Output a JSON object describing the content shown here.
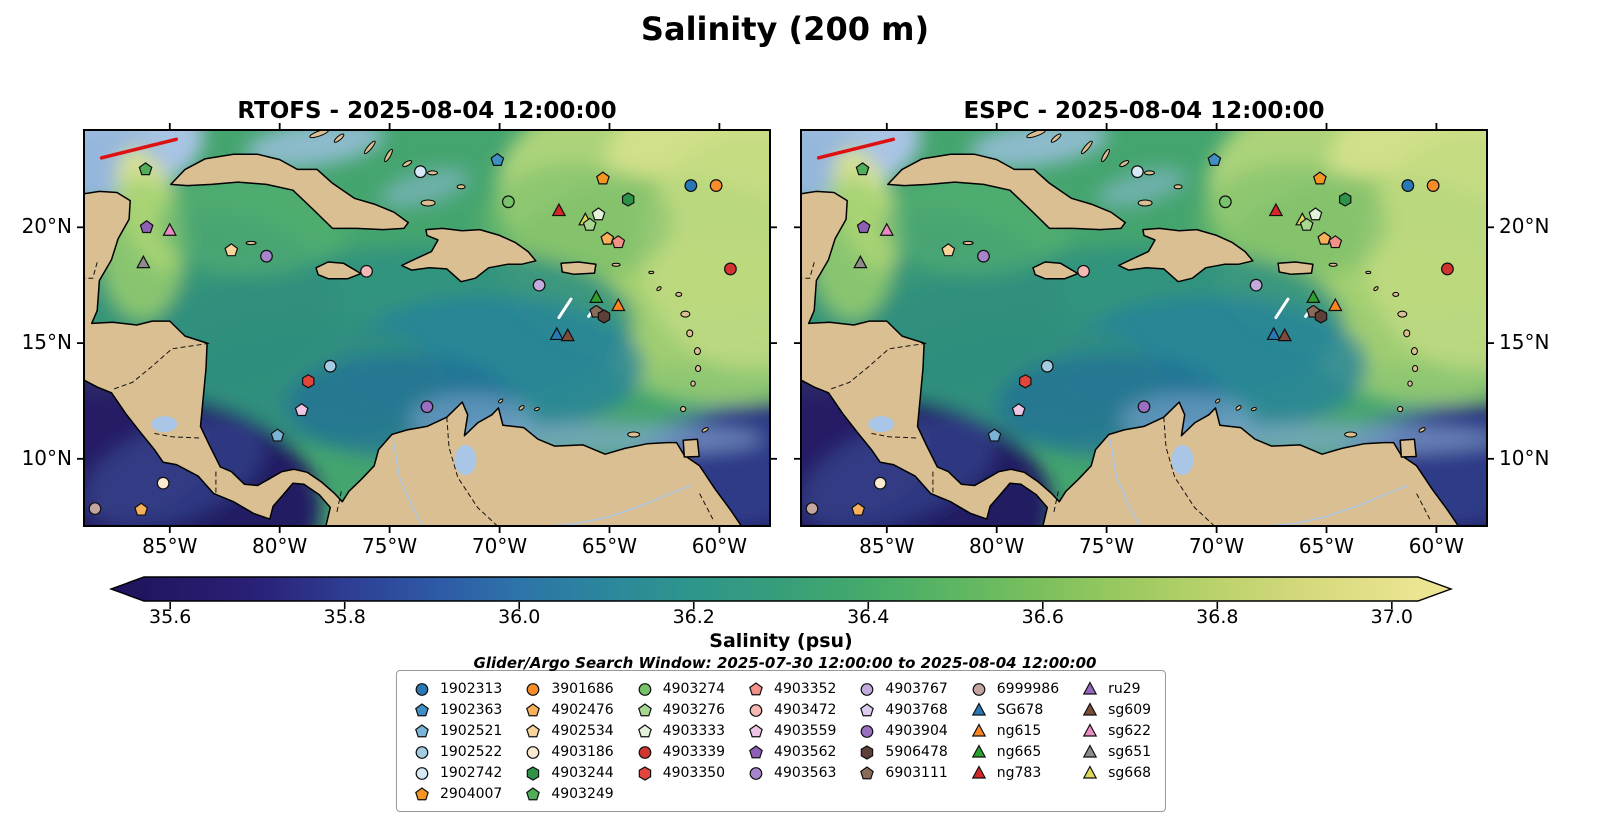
{
  "figure_title": "Salinity (200 m)",
  "panels": [
    {
      "model": "RTOFS",
      "title": "RTOFS - 2025-08-04 12:00:00"
    },
    {
      "model": "ESPC",
      "title": "ESPC - 2025-08-04 12:00:00"
    }
  ],
  "axes": {
    "x_tick_labels": [
      "85°W",
      "80°W",
      "75°W",
      "70°W",
      "65°W",
      "60°W"
    ],
    "y_tick_labels": [
      "20°N",
      "15°N",
      "10°N"
    ]
  },
  "colorbar": {
    "label": "Salinity (psu)",
    "tick_labels": [
      "35.6",
      "35.8",
      "36.0",
      "36.2",
      "36.4",
      "36.6",
      "36.8",
      "37.0"
    ]
  },
  "annotation": "Glider/Argo Search Window: 2025-07-30 12:00:00 to 2025-08-04 12:00:00",
  "palette": {
    "land": "#d9bf92",
    "coastline": "#000000",
    "ocean_base": "#45a56f",
    "shelf_blue": "#a9c4e4",
    "river_blue": "#a9c6e6",
    "fresh_dark": "#221a63",
    "track_red": "#dd1111",
    "track_white": "#ffffff",
    "marker_edge": "#101010"
  },
  "legend": {
    "columns": [
      [
        {
          "label": "1902313",
          "marker": "circle",
          "color": "#2878b5"
        },
        {
          "label": "1902363",
          "marker": "pentagon",
          "color": "#3f8fc5"
        },
        {
          "label": "1902521",
          "marker": "pentagon",
          "color": "#7ab4d8"
        },
        {
          "label": "1902522",
          "marker": "circle",
          "color": "#a3cce3"
        },
        {
          "label": "1902742",
          "marker": "circle",
          "color": "#d6e9f5"
        },
        {
          "label": "2904007",
          "marker": "pentagon",
          "color": "#f59622"
        }
      ],
      [
        {
          "label": "3901686",
          "marker": "circle",
          "color": "#f78c28"
        },
        {
          "label": "4902476",
          "marker": "pentagon",
          "color": "#f9b05a"
        },
        {
          "label": "4902534",
          "marker": "pentagon",
          "color": "#f8d49a"
        },
        {
          "label": "4903186",
          "marker": "circle",
          "color": "#faebd0"
        },
        {
          "label": "4903244",
          "marker": "hexagon",
          "color": "#2e9249"
        },
        {
          "label": "4903249",
          "marker": "pentagon",
          "color": "#4fae57"
        }
      ],
      [
        {
          "label": "4903274",
          "marker": "circle",
          "color": "#77c26b"
        },
        {
          "label": "4903276",
          "marker": "pentagon",
          "color": "#a8d792"
        },
        {
          "label": "4903333",
          "marker": "pentagon",
          "color": "#e3f3da"
        },
        {
          "label": "4903339",
          "marker": "circle",
          "color": "#d23430"
        },
        {
          "label": "4903350",
          "marker": "hexagon",
          "color": "#e1453c"
        }
      ],
      [
        {
          "label": "4903352",
          "marker": "pentagon",
          "color": "#f2918a"
        },
        {
          "label": "4903472",
          "marker": "circle",
          "color": "#f6b8b4"
        },
        {
          "label": "4903559",
          "marker": "pentagon",
          "color": "#ecc6e4"
        },
        {
          "label": "4903562",
          "marker": "pentagon",
          "color": "#8e5fb5"
        },
        {
          "label": "4903563",
          "marker": "circle",
          "color": "#a884cc"
        }
      ],
      [
        {
          "label": "4903767",
          "marker": "circle",
          "color": "#c4abde"
        },
        {
          "label": "4903768",
          "marker": "pentagon",
          "color": "#dccdee"
        },
        {
          "label": "4903904",
          "marker": "circle",
          "color": "#9a6ec2"
        },
        {
          "label": "5906478",
          "marker": "hexagon",
          "color": "#5d4037"
        },
        {
          "label": "6903111",
          "marker": "pentagon",
          "color": "#8a6a58"
        }
      ],
      [
        {
          "label": "6999986",
          "marker": "circle",
          "color": "#c3a6a0"
        },
        {
          "label": "SG678",
          "marker": "triangle",
          "color": "#2878b5"
        },
        {
          "label": "ng615",
          "marker": "triangle",
          "color": "#fd8420"
        },
        {
          "label": "ng665",
          "marker": "triangle",
          "color": "#2ca02c"
        },
        {
          "label": "ng783",
          "marker": "triangle",
          "color": "#d62728"
        }
      ],
      [
        {
          "label": "ru29",
          "marker": "triangle",
          "color": "#9467bd"
        },
        {
          "label": "sg609",
          "marker": "triangle",
          "color": "#7d4b3a"
        },
        {
          "label": "sg622",
          "marker": "triangle",
          "color": "#e88bc4"
        },
        {
          "label": "sg651",
          "marker": "triangle",
          "color": "#8c8c8c"
        },
        {
          "label": "sg668",
          "marker": "triangle",
          "color": "#ddd85a"
        }
      ]
    ]
  },
  "chart_data": {
    "type": "heatmap",
    "title": "Salinity (200 m)",
    "variable": "Salinity",
    "units": "psu",
    "depth": "200 m",
    "panels": [
      {
        "model": "RTOFS",
        "valid_time": "2025-08-04 12:00:00"
      },
      {
        "model": "ESPC",
        "valid_time": "2025-08-04 12:00:00"
      }
    ],
    "search_window": {
      "start": "2025-07-30 12:00:00",
      "end": "2025-08-04 12:00:00"
    },
    "x_axis": {
      "ticks_deg_west": [
        85,
        80,
        75,
        70,
        65,
        60
      ],
      "range_deg_west": [
        88.9,
        57.7
      ]
    },
    "y_axis": {
      "ticks_deg_north": [
        20,
        15,
        10
      ],
      "range_deg_north": [
        24.2,
        7.1
      ]
    },
    "colorbar": {
      "label": "Salinity (psu)",
      "ticks": [
        35.6,
        35.8,
        36.0,
        36.2,
        36.4,
        36.6,
        36.8,
        37.0
      ],
      "range": [
        35.57,
        37.03
      ],
      "extended_both_ends": true,
      "gradient": [
        {
          "v": 35.57,
          "c": "#201660"
        },
        {
          "v": 35.7,
          "c": "#2a2178"
        },
        {
          "v": 35.8,
          "c": "#2e3d92"
        },
        {
          "v": 35.9,
          "c": "#2e58a6"
        },
        {
          "v": 36.0,
          "c": "#2d74a8"
        },
        {
          "v": 36.1,
          "c": "#2b879c"
        },
        {
          "v": 36.2,
          "c": "#2e968b"
        },
        {
          "v": 36.3,
          "c": "#379e7a"
        },
        {
          "v": 36.4,
          "c": "#45aa6a"
        },
        {
          "v": 36.5,
          "c": "#5db662"
        },
        {
          "v": 36.6,
          "c": "#7cc05d"
        },
        {
          "v": 36.7,
          "c": "#9cca60"
        },
        {
          "v": 36.8,
          "c": "#bbd26c"
        },
        {
          "v": 36.9,
          "c": "#d5d97c"
        },
        {
          "v": 37.03,
          "c": "#ebe491"
        }
      ]
    },
    "marker_positions": [
      {
        "id": "4903249",
        "lon_w": 86.1,
        "lat_n": 22.5
      },
      {
        "id": "4903562",
        "lon_w": 86.05,
        "lat_n": 20.0
      },
      {
        "id": "sg622",
        "lon_w": 85.0,
        "lat_n": 19.85
      },
      {
        "id": "sg651",
        "lon_w": 86.2,
        "lat_n": 18.45
      },
      {
        "id": "4902534",
        "lon_w": 82.2,
        "lat_n": 19.0
      },
      {
        "id": "4903563",
        "lon_w": 80.6,
        "lat_n": 18.75
      },
      {
        "id": "4903472",
        "lon_w": 76.05,
        "lat_n": 18.1
      },
      {
        "id": "1902742",
        "lon_w": 73.6,
        "lat_n": 22.4
      },
      {
        "id": "1902363",
        "lon_w": 70.1,
        "lat_n": 22.9
      },
      {
        "id": "4903274",
        "lon_w": 69.6,
        "lat_n": 21.1
      },
      {
        "id": "2904007",
        "lon_w": 65.3,
        "lat_n": 22.1
      },
      {
        "id": "1902313",
        "lon_w": 61.3,
        "lat_n": 21.8
      },
      {
        "id": "3901686",
        "lon_w": 60.15,
        "lat_n": 21.8
      },
      {
        "id": "4903244",
        "lon_w": 64.15,
        "lat_n": 21.2
      },
      {
        "id": "ng783",
        "lon_w": 67.3,
        "lat_n": 20.7
      },
      {
        "id": "4903333",
        "lon_w": 65.5,
        "lat_n": 20.55
      },
      {
        "id": "sg668",
        "lon_w": 66.1,
        "lat_n": 20.3
      },
      {
        "id": "4903276",
        "lon_w": 65.9,
        "lat_n": 20.1
      },
      {
        "id": "4902476",
        "lon_w": 65.1,
        "lat_n": 19.5
      },
      {
        "id": "4903352",
        "lon_w": 64.6,
        "lat_n": 19.35
      },
      {
        "id": "4903339",
        "lon_w": 59.5,
        "lat_n": 18.2
      },
      {
        "id": "4903767",
        "lon_w": 68.2,
        "lat_n": 17.5
      },
      {
        "id": "ng665",
        "lon_w": 65.6,
        "lat_n": 16.95
      },
      {
        "id": "ng615",
        "lon_w": 64.6,
        "lat_n": 16.6
      },
      {
        "id": "6903111",
        "lon_w": 65.6,
        "lat_n": 16.35
      },
      {
        "id": "5906478",
        "lon_w": 65.25,
        "lat_n": 16.15
      },
      {
        "id": "SG678",
        "lon_w": 67.4,
        "lat_n": 15.35
      },
      {
        "id": "sg609",
        "lon_w": 66.9,
        "lat_n": 15.3
      },
      {
        "id": "1902522",
        "lon_w": 77.7,
        "lat_n": 14.0
      },
      {
        "id": "4903350",
        "lon_w": 78.7,
        "lat_n": 13.35
      },
      {
        "id": "4903904",
        "lon_w": 73.3,
        "lat_n": 12.25
      },
      {
        "id": "4903559",
        "lon_w": 79.0,
        "lat_n": 12.1
      },
      {
        "id": "1902521",
        "lon_w": 80.1,
        "lat_n": 11.0
      },
      {
        "id": "4903186",
        "lon_w": 85.3,
        "lat_n": 8.95
      },
      {
        "id": "6999986",
        "lon_w": 88.4,
        "lat_n": 7.85
      },
      {
        "id": "4902476",
        "lon_w": 86.3,
        "lat_n": 7.8
      }
    ],
    "tracks": [
      {
        "color": "white",
        "points": [
          [
            67.3,
            16.1
          ],
          [
            66.75,
            16.9
          ]
        ]
      },
      {
        "color": "white",
        "points": [
          [
            65.95,
            16.15
          ],
          [
            65.6,
            16.6
          ]
        ]
      },
      {
        "color": "red",
        "points": [
          [
            88.1,
            23.0
          ],
          [
            84.7,
            23.8
          ]
        ]
      }
    ]
  }
}
